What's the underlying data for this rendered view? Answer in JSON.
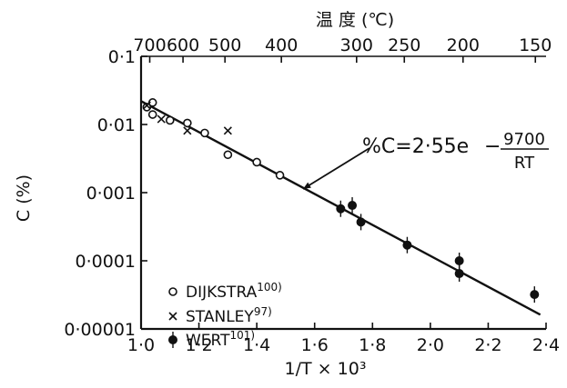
{
  "chart_data": {
    "type": "scatter",
    "top_axis_title": "温 度 (℃)",
    "top_ticks": [
      {
        "label": "700",
        "x_value": 1.03
      },
      {
        "label": "600",
        "x_value": 1.145
      },
      {
        "label": "500",
        "x_value": 1.29
      },
      {
        "label": "400",
        "x_value": 1.485
      },
      {
        "label": "300",
        "x_value": 1.745
      },
      {
        "label": "250",
        "x_value": 1.91
      },
      {
        "label": "200",
        "x_value": 2.113
      },
      {
        "label": "150",
        "x_value": 2.363
      }
    ],
    "xlabel": "1/T × 10³",
    "ylabel": "C (%)",
    "xlim": [
      1.0,
      2.4
    ],
    "ylim": [
      1e-05,
      0.1
    ],
    "yscale": "log",
    "x_ticks": [
      {
        "value": 1.0,
        "label": "1·0"
      },
      {
        "value": 1.2,
        "label": "1·2"
      },
      {
        "value": 1.4,
        "label": "1·4"
      },
      {
        "value": 1.6,
        "label": "1·6"
      },
      {
        "value": 1.8,
        "label": "1·8"
      },
      {
        "value": 2.0,
        "label": "2·0"
      },
      {
        "value": 2.2,
        "label": "2·2"
      },
      {
        "value": 2.4,
        "label": "2·4"
      }
    ],
    "y_ticks": [
      {
        "value": 0.1,
        "label": "0·1"
      },
      {
        "value": 0.01,
        "label": "0·01"
      },
      {
        "value": 0.001,
        "label": "0·001"
      },
      {
        "value": 0.0001,
        "label": "0·0001"
      },
      {
        "value": 1e-05,
        "label": "0·00001"
      }
    ],
    "series": [
      {
        "name": "DIJKSTRA",
        "ref": "100)",
        "marker": "open-circle",
        "points": [
          [
            1.02,
            0.018
          ],
          [
            1.04,
            0.021
          ],
          [
            1.04,
            0.014
          ],
          [
            1.1,
            0.0115
          ],
          [
            1.16,
            0.0105
          ],
          [
            1.22,
            0.0075
          ],
          [
            1.3,
            0.0036
          ],
          [
            1.4,
            0.0028
          ],
          [
            1.48,
            0.0018
          ]
        ]
      },
      {
        "name": "STANLEY",
        "ref": "97)",
        "marker": "cross",
        "points": [
          [
            1.02,
            0.019
          ],
          [
            1.07,
            0.012
          ],
          [
            1.16,
            0.0081
          ],
          [
            1.3,
            0.0081
          ]
        ]
      },
      {
        "name": "WERT",
        "ref": "101)",
        "marker": "filled-circle",
        "points": [
          [
            1.69,
            0.00058
          ],
          [
            1.73,
            0.00065
          ],
          [
            1.76,
            0.00037
          ],
          [
            1.92,
            0.00017
          ],
          [
            2.1,
            0.0001
          ],
          [
            2.1,
            6.5e-05
          ],
          [
            2.36,
            3.2e-05
          ]
        ]
      }
    ],
    "fit_line": {
      "x": [
        1.0,
        2.38
      ],
      "y": [
        0.022,
        1.62e-05
      ]
    },
    "annotation": {
      "prefix": "%C=2·55e",
      "sign": "−",
      "numerator": "9700",
      "denominator": "RT",
      "arrow_target": [
        1.56,
        0.00113
      ]
    },
    "legend_position": "bottom-left"
  }
}
